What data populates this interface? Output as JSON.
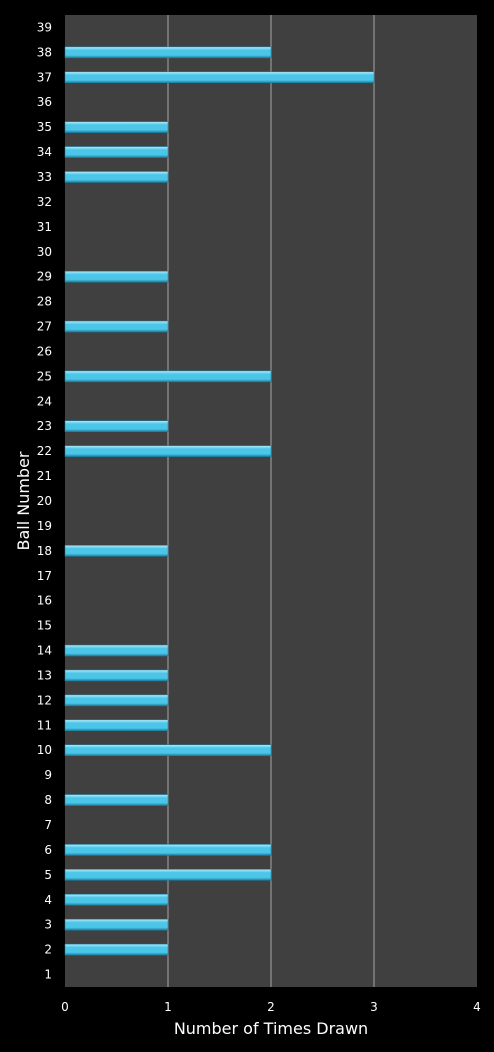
{
  "chart_data": {
    "type": "bar",
    "orientation": "horizontal",
    "title": "",
    "xlabel": "Number of Times Drawn",
    "ylabel": "Ball Number",
    "xlim": [
      0,
      4
    ],
    "x_ticks": [
      "0",
      "1",
      "2",
      "3",
      "4"
    ],
    "grid": "vertical",
    "legend": "none",
    "categories": [
      "1",
      "2",
      "3",
      "4",
      "5",
      "6",
      "7",
      "8",
      "9",
      "10",
      "11",
      "12",
      "13",
      "14",
      "15",
      "16",
      "17",
      "18",
      "19",
      "20",
      "21",
      "22",
      "23",
      "24",
      "25",
      "26",
      "27",
      "28",
      "29",
      "30",
      "31",
      "32",
      "33",
      "34",
      "35",
      "36",
      "37",
      "38",
      "39"
    ],
    "values": [
      0,
      1,
      1,
      1,
      2,
      2,
      0,
      1,
      0,
      2,
      1,
      1,
      1,
      1,
      0,
      0,
      0,
      1,
      0,
      0,
      0,
      2,
      1,
      0,
      2,
      0,
      1,
      0,
      1,
      0,
      0,
      0,
      1,
      1,
      1,
      0,
      3,
      2,
      0
    ],
    "colors": {
      "background": "#000000",
      "plot_area": "#404040",
      "gridline": "#a6a6a6",
      "bar": "#4cc6e8",
      "bar_highlight": "#b5ecfb",
      "bar_shadow": "#1a7fa0",
      "text": "#ffffff"
    }
  }
}
